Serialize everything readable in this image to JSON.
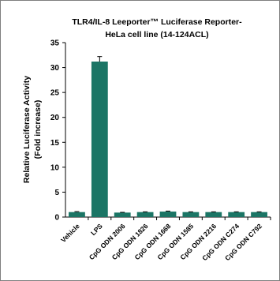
{
  "chart_data": {
    "type": "bar",
    "title": "TLR4/IL-8 Leeporter™ Luciferase Reporter-",
    "subtitle": "HeLa cell line (14-124ACL)",
    "ylabel": "Relative Luciferase Activity",
    "ylabel2": "(Fold increase)",
    "xlabel": "",
    "ylim": [
      0,
      35
    ],
    "yticks": [
      0,
      5,
      10,
      15,
      20,
      25,
      30,
      35
    ],
    "yticks_text": [
      "0",
      "5",
      "10",
      "15",
      "20",
      "25",
      "30",
      "35"
    ],
    "categories": [
      "Vehicle",
      "LPS",
      "CpG ODN 2006",
      "CpG ODN 1826",
      "CpG ODN 1668",
      "CpG ODN 1585",
      "CpG ODN 2216",
      "CpG ODN C274",
      "CpG ODN C792"
    ],
    "values": [
      1.0,
      31.2,
      0.9,
      1.0,
      1.1,
      1.0,
      1.0,
      1.0,
      1.0
    ],
    "errors": [
      0.1,
      1.0,
      0.05,
      0.05,
      0.1,
      0.05,
      0.05,
      0.05,
      0.05
    ],
    "bar_color": "#1b7565",
    "grid": false
  }
}
